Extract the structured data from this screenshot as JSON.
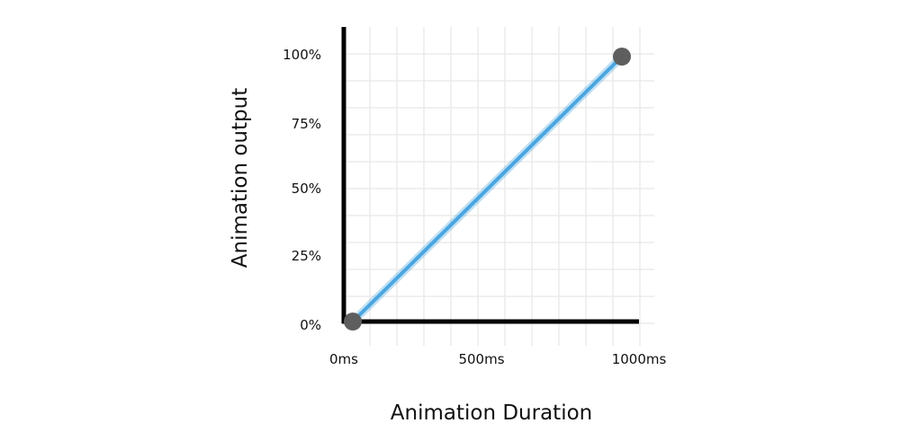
{
  "chart_data": {
    "type": "line",
    "title": "",
    "xlabel": "Animation Duration",
    "ylabel": "Animation output",
    "x_unit": "ms",
    "y_unit": "%",
    "x_ticks": [
      {
        "value": 0,
        "label": "0ms"
      },
      {
        "value": 500,
        "label": "500ms"
      },
      {
        "value": 1000,
        "label": "1000ms"
      }
    ],
    "y_ticks": [
      {
        "value": 0,
        "label": "0%"
      },
      {
        "value": 25,
        "label": "25%"
      },
      {
        "value": 50,
        "label": "50%"
      },
      {
        "value": 75,
        "label": "75%"
      },
      {
        "value": 100,
        "label": "100%"
      }
    ],
    "xlim": [
      0,
      1000
    ],
    "ylim": [
      0,
      100
    ],
    "grid": true,
    "legend": "none",
    "series": [
      {
        "color": "#4aa6e0",
        "x": [
          0,
          1000
        ],
        "y": [
          0,
          100
        ]
      }
    ],
    "endpoints": [
      {
        "x": 0,
        "y": 0
      },
      {
        "x": 1000,
        "y": 100
      }
    ],
    "endpoint_color": "#5e5e5e"
  }
}
